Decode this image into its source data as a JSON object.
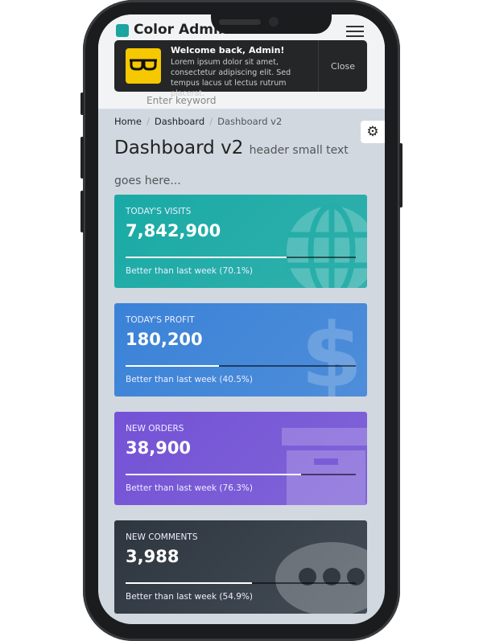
{
  "topbar": {
    "brand": "Color Admin",
    "search_placeholder": "Enter keyword"
  },
  "notification": {
    "title": "Welcome back, Admin!",
    "body": "Lorem ipsum dolor sit amet, consectetur adipiscing elit. Sed tempus lacus ut lectus rutrum placerat.",
    "close_label": "Close"
  },
  "breadcrumb": [
    "Home",
    "Dashboard",
    "Dashboard v2"
  ],
  "page": {
    "title": "Dashboard v2",
    "subtitle": "header small text goes here..."
  },
  "cards": [
    {
      "label": "TODAY'S VISITS",
      "value": "7,842,900",
      "desc": "Better than last week (70.1%)",
      "progress": 70.1,
      "color": "#19aaa5",
      "icon": "globe-icon"
    },
    {
      "label": "TODAY'S PROFIT",
      "value": "180,200",
      "desc": "Better than last week (40.5%)",
      "progress": 40.5,
      "color": "#3a82d8",
      "icon": "dollar-icon"
    },
    {
      "label": "NEW ORDERS",
      "value": "38,900",
      "desc": "Better than last week (76.3%)",
      "progress": 76.3,
      "color": "#7452d6",
      "icon": "archive-icon"
    },
    {
      "label": "NEW COMMENTS",
      "value": "3,988",
      "desc": "Better than last week (54.9%)",
      "progress": 54.9,
      "color": "#2e3640",
      "icon": "comments-icon"
    }
  ]
}
